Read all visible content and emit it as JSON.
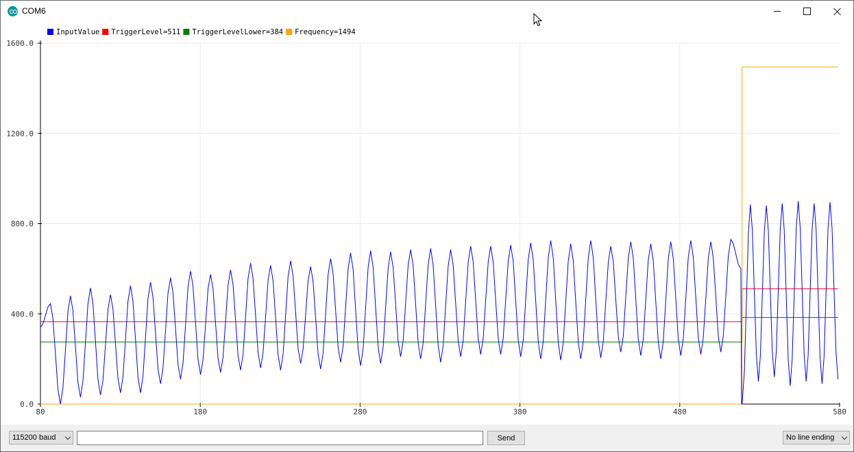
{
  "window": {
    "title": "COM6"
  },
  "colors": {
    "input": "#0000ff",
    "trigger": "#ff0000",
    "trigger_lower": "#008000",
    "frequency": "#ffa500",
    "grid": "#ebebeb"
  },
  "icons": {
    "app": "arduino-icon",
    "minimize": "minimize-icon",
    "maximize": "maximize-icon",
    "close": "close-icon",
    "cursor": "mouse-pointer-icon"
  },
  "bottom": {
    "baud": "115200 baud",
    "input_value": "",
    "input_placeholder": "",
    "send_label": "Send",
    "line_ending": "No line ending"
  },
  "chart_data": {
    "type": "line",
    "legend": [
      {
        "name": "InputValue",
        "label": "InputValue",
        "color": "#0000ff"
      },
      {
        "name": "TriggerLevel",
        "label": "TriggerLevel=511",
        "color": "#ff0000"
      },
      {
        "name": "TriggerLevelLower",
        "label": "TriggerLevelLower=384",
        "color": "#008000"
      },
      {
        "name": "Frequency",
        "label": "Frequency=1494",
        "color": "#ffa500"
      }
    ],
    "xlim": [
      80,
      580
    ],
    "ylim": [
      0,
      1600
    ],
    "x_ticks": [
      "80",
      "180",
      "280",
      "380",
      "480",
      "580"
    ],
    "y_ticks": [
      "0.0",
      "400.0",
      "800.0",
      "1200.0",
      "1600.0"
    ],
    "step_x": 519,
    "series": [
      {
        "name": "InputValue",
        "peaks": [
          445,
          480,
          515,
          485,
          525,
          540,
          560,
          590,
          575,
          595,
          625,
          615,
          635,
          610,
          645,
          670,
          680,
          675,
          685,
          690,
          685,
          700,
          700,
          705,
          715,
          725,
          710,
          725,
          700,
          720,
          710,
          720,
          725,
          720,
          730
        ],
        "troughs": [
          0,
          30,
          40,
          50,
          50,
          90,
          110,
          130,
          140,
          150,
          160,
          150,
          180,
          155,
          185,
          170,
          180,
          210,
          200,
          185,
          210,
          220,
          220,
          210,
          200,
          195,
          200,
          205,
          230,
          215,
          200,
          215,
          220,
          230
        ],
        "peaks_after": [
          885,
          880,
          890,
          900,
          890,
          895
        ],
        "troughs_after": [
          100,
          120,
          80,
          100,
          90
        ]
      },
      {
        "name": "TriggerLevel",
        "before": 365,
        "after": 511
      },
      {
        "name": "TriggerLevelLower",
        "before": 275,
        "after": 384
      },
      {
        "name": "Frequency",
        "before": 0,
        "after": 1494
      }
    ]
  }
}
